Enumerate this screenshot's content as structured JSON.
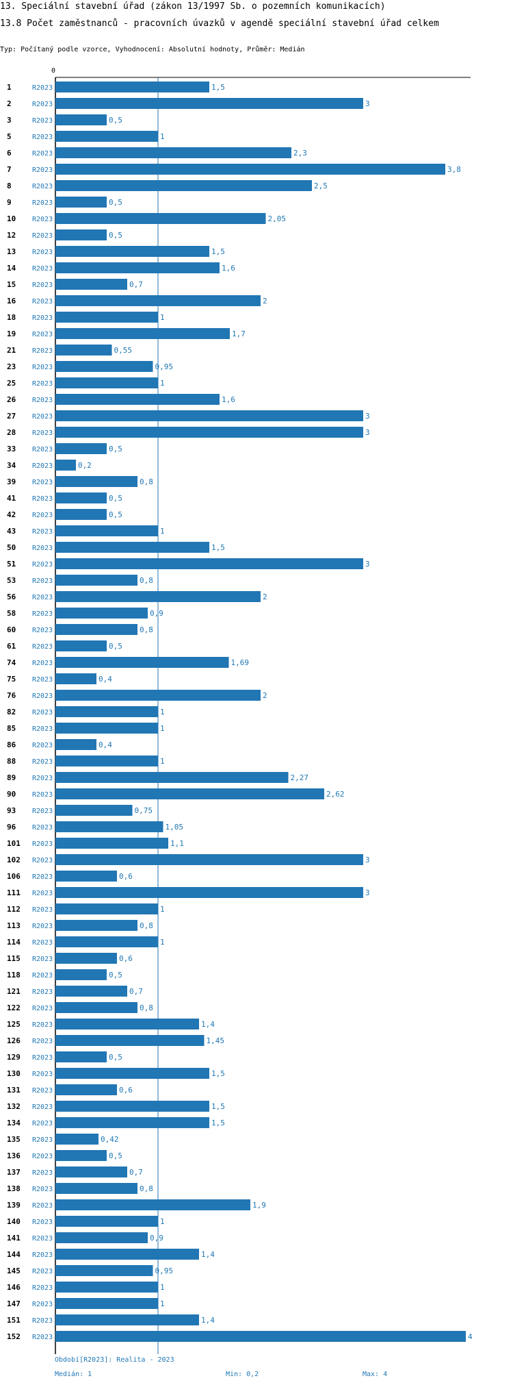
{
  "header": {
    "title": "13. Speciální stavební úřad (zákon 13/1997 Sb. o pozemních komunikacích)",
    "subtitle": "13.8 Počet zaměstnanců - pracovních úvazků v agendě speciální stavební úřad celkem",
    "meta": "Typ: Počítaný podle vzorce, Vyhodnocení: Absolutní hodnoty, Průměr: Medián"
  },
  "colors": {
    "bar": "#2176b4",
    "text_accent": "#1f77b4",
    "axis": "#000000"
  },
  "chart_data": {
    "type": "bar",
    "orientation": "horizontal",
    "series_name": "R2023",
    "axis_tick_label": "0",
    "xlim": [
      0,
      4
    ],
    "median_line": 1,
    "categories": [
      "1",
      "2",
      "3",
      "5",
      "6",
      "7",
      "8",
      "9",
      "10",
      "12",
      "13",
      "14",
      "15",
      "16",
      "18",
      "19",
      "21",
      "23",
      "25",
      "26",
      "27",
      "28",
      "33",
      "34",
      "39",
      "41",
      "42",
      "43",
      "50",
      "51",
      "53",
      "56",
      "58",
      "60",
      "61",
      "74",
      "75",
      "76",
      "82",
      "85",
      "86",
      "88",
      "89",
      "90",
      "93",
      "96",
      "101",
      "102",
      "106",
      "111",
      "112",
      "113",
      "114",
      "115",
      "118",
      "121",
      "122",
      "125",
      "126",
      "129",
      "130",
      "131",
      "132",
      "134",
      "135",
      "136",
      "137",
      "138",
      "139",
      "140",
      "141",
      "144",
      "145",
      "146",
      "147",
      "151",
      "152"
    ],
    "values": [
      1.5,
      3,
      0.5,
      1,
      2.3,
      3.8,
      2.5,
      0.5,
      2.05,
      0.5,
      1.5,
      1.6,
      0.7,
      2,
      1,
      1.7,
      0.55,
      0.95,
      1,
      1.6,
      3,
      3,
      0.5,
      0.2,
      0.8,
      0.5,
      0.5,
      1,
      1.5,
      3,
      0.8,
      2,
      0.9,
      0.8,
      0.5,
      1.69,
      0.4,
      2,
      1,
      1,
      0.4,
      1,
      2.27,
      2.62,
      0.75,
      1.05,
      1.1,
      3,
      0.6,
      3,
      1,
      0.8,
      1,
      0.6,
      0.5,
      0.7,
      0.8,
      1.4,
      1.45,
      0.5,
      1.5,
      0.6,
      1.5,
      1.5,
      0.42,
      0.5,
      0.7,
      0.8,
      1.9,
      1,
      0.9,
      1.4,
      0.95,
      1,
      1,
      1.4,
      4
    ],
    "value_labels": [
      "1,5",
      "3",
      "0,5",
      "1",
      "2,3",
      "3,8",
      "2,5",
      "0,5",
      "2,05",
      "0,5",
      "1,5",
      "1,6",
      "0,7",
      "2",
      "1",
      "1,7",
      "0,55",
      "0,95",
      "1",
      "1,6",
      "3",
      "3",
      "0,5",
      "0,2",
      "0,8",
      "0,5",
      "0,5",
      "1",
      "1,5",
      "3",
      "0,8",
      "2",
      "0,9",
      "0,8",
      "0,5",
      "1,69",
      "0,4",
      "2",
      "1",
      "1",
      "0,4",
      "1",
      "2,27",
      "2,62",
      "0,75",
      "1,05",
      "1,1",
      "3",
      "0,6",
      "3",
      "1",
      "0,8",
      "1",
      "0,6",
      "0,5",
      "0,7",
      "0,8",
      "1,4",
      "1,45",
      "0,5",
      "1,5",
      "0,6",
      "1,5",
      "1,5",
      "0,42",
      "0,5",
      "0,7",
      "0,8",
      "1,9",
      "1",
      "0,9",
      "1,4",
      "0,95",
      "1",
      "1",
      "1,4",
      "4"
    ]
  },
  "footer": {
    "period": "Období[R2023]: Realita - 2023",
    "median": "Medián: 1",
    "min": "Min: 0,2",
    "max": "Max: 4"
  }
}
